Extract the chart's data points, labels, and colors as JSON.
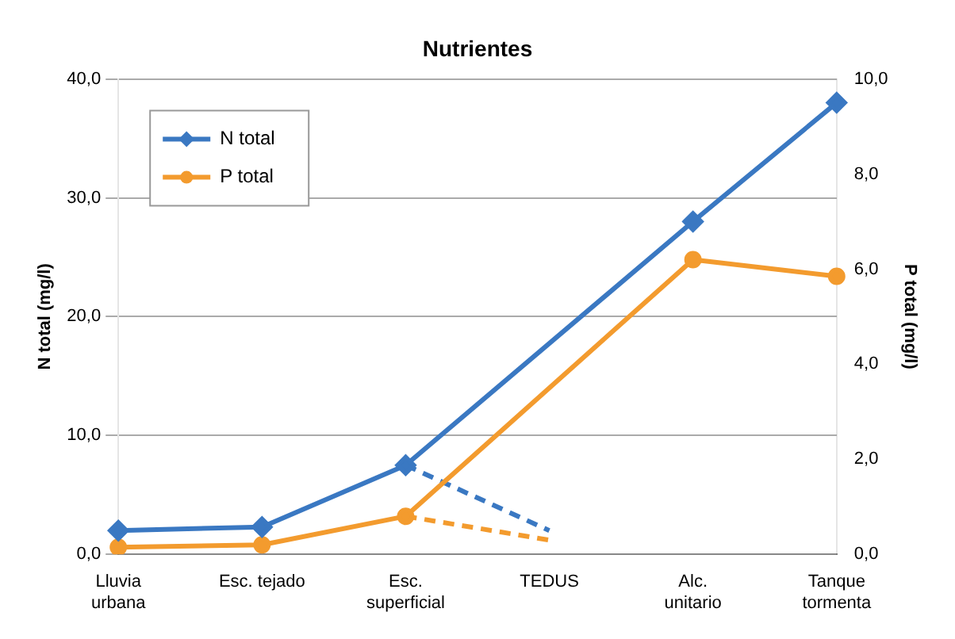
{
  "chart_data": {
    "type": "line",
    "title": "Nutrientes",
    "ylabel": "N total (mg/l)",
    "y2label": "P total (mg/l)",
    "categories": [
      "Lluvia urbana",
      "Esc. tejado",
      "Esc. superficial",
      "TEDUS",
      "Alc. unitario",
      "Tanque tormenta"
    ],
    "series": [
      {
        "name": "N total",
        "color": "#3a78c2",
        "values": [
          2.0,
          2.3,
          7.5,
          null,
          28.0,
          38.0
        ],
        "marker": "diamond",
        "line_style": "solid"
      },
      {
        "name": "P total",
        "color": "#f39b2e",
        "values": [
          0.15,
          0.2,
          0.8,
          null,
          6.2,
          5.85
        ],
        "axis": "y2",
        "marker": "circle",
        "line_style": "solid"
      },
      {
        "color": "#3a78c2",
        "values": [
          null,
          null,
          7.5,
          2.0,
          null,
          null
        ],
        "line_style": "dashed"
      },
      {
        "color": "#f39b2e",
        "values": [
          null,
          null,
          0.8,
          0.3,
          null,
          null
        ],
        "axis": "y2",
        "line_style": "dashed"
      }
    ],
    "ylim": [
      0,
      40
    ],
    "yticks": [
      {
        "value": 0,
        "label": "0,0"
      },
      {
        "value": 10,
        "label": "10,0"
      },
      {
        "value": 20,
        "label": "20,0"
      },
      {
        "value": 30,
        "label": "30,0"
      },
      {
        "value": 40,
        "label": "40,0"
      }
    ],
    "y2lim": [
      0,
      10
    ],
    "y2ticks": [
      {
        "value": 0,
        "label": "0,0"
      },
      {
        "value": 2,
        "label": "2,0"
      },
      {
        "value": 4,
        "label": "4,0"
      },
      {
        "value": 6,
        "label": "6,0"
      },
      {
        "value": 8,
        "label": "8,0"
      },
      {
        "value": 10,
        "label": "10,0"
      }
    ],
    "grid": "y",
    "legend": "top left"
  }
}
